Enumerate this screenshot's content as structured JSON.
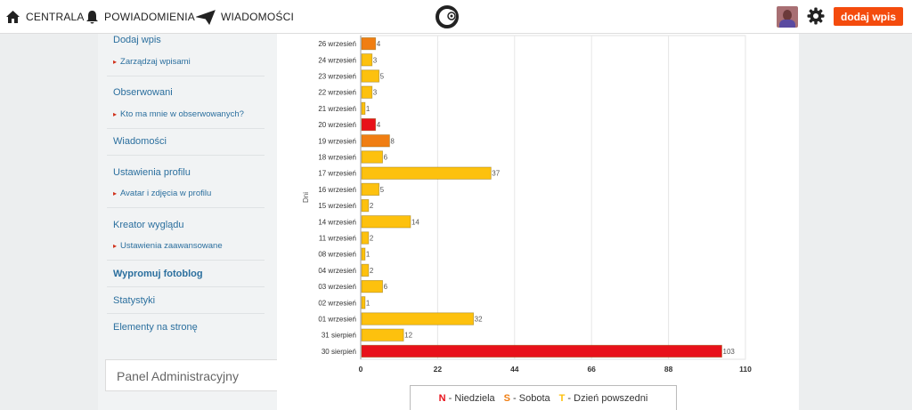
{
  "header": {
    "nav": [
      {
        "label": "CENTRALA",
        "icon": "home-icon"
      },
      {
        "label": "POWIADOMIENIA",
        "icon": "bell-icon"
      },
      {
        "label": "WIADOMOŚCI",
        "icon": "paper-plane-icon"
      }
    ],
    "logo_icon": "site-logo",
    "add_button": "dodaj wpis"
  },
  "sidebar": {
    "dodaj_wpis": "Dodaj wpis",
    "zarzadzaj": "Zarządzaj wpisami",
    "obserwowani": "Obserwowani",
    "kto_ma": "Kto ma mnie w obserwowanych?",
    "wiadomosci": "Wiadomości",
    "ustawienia": "Ustawienia profilu",
    "avatar": "Avatar i zdjęcia w profilu",
    "kreator": "Kreator wyglądu",
    "zaawansowane": "Ustawienia zaawansowane",
    "wypromuj": "Wypromuj fotoblog",
    "statystyki": "Statystyki",
    "elementy": "Elementy na stronę",
    "panel": "Panel Administracyjny"
  },
  "colors": {
    "sunday": "#e8111a",
    "saturday": "#f07e12",
    "weekday": "#fdc10e",
    "accent": "#f44b0d"
  },
  "chart_data": {
    "type": "bar",
    "orientation": "horizontal",
    "ylabel": "Dni",
    "xlim": [
      0,
      110
    ],
    "xticks": [
      0,
      22,
      44,
      66,
      88,
      110
    ],
    "categories": [
      "26 wrzesień",
      "24 wrzesień",
      "23 wrzesień",
      "22 wrzesień",
      "21 wrzesień",
      "20 wrzesień",
      "19 wrzesień",
      "18 wrzesień",
      "17 wrzesień",
      "16 wrzesień",
      "15 wrzesień",
      "14 wrzesień",
      "11 wrzesień",
      "08 wrzesień",
      "04 wrzesień",
      "03 wrzesień",
      "02 wrzesień",
      "01 wrzesień",
      "31 sierpień",
      "30 sierpień"
    ],
    "values": [
      4,
      3,
      5,
      3,
      1,
      4,
      8,
      6,
      37,
      5,
      2,
      14,
      2,
      1,
      2,
      6,
      1,
      32,
      12,
      103
    ],
    "day_type": [
      "S",
      "T",
      "T",
      "T",
      "T",
      "N",
      "S",
      "T",
      "T",
      "T",
      "T",
      "T",
      "T",
      "T",
      "T",
      "T",
      "T",
      "T",
      "T",
      "N"
    ],
    "grid": true,
    "legend": {
      "placement": "bottom",
      "entries": [
        {
          "letter": "N",
          "label": " - Niedziela",
          "color": "#e8111a"
        },
        {
          "letter": "S",
          "label": " - Sobota",
          "color": "#f07e12"
        },
        {
          "letter": "T",
          "label": " - Dzień powszedni",
          "color": "#fdc10e"
        }
      ]
    }
  }
}
